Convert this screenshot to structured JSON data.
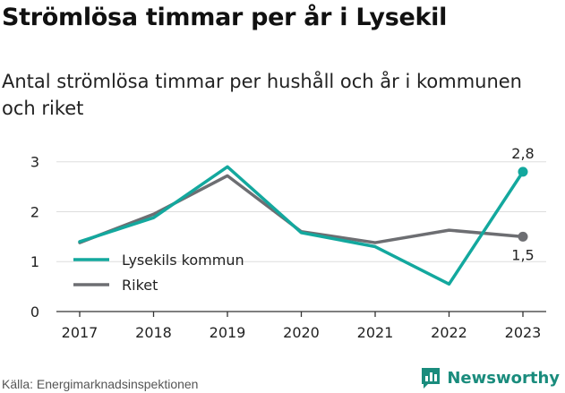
{
  "header": {
    "title": "Strömlösa timmar per år i Lysekil",
    "subtitle": "Antal strömlösa timmar per hushåll och år i kommunen och riket"
  },
  "footer": {
    "source": "Källa: Energimarknadsinspektionen",
    "brand": "Newsworthy",
    "brand_icon": "newsworthy-logo-icon"
  },
  "colors": {
    "lysekil": "#13a89e",
    "riket": "#6d6e72",
    "grid": "#dddddd",
    "axis": "#333333"
  },
  "chart_data": {
    "type": "line",
    "x": [
      "2017",
      "2018",
      "2019",
      "2020",
      "2021",
      "2022",
      "2023"
    ],
    "ylim": [
      0,
      3.3
    ],
    "yticks": [
      "0",
      "1",
      "2",
      "3"
    ],
    "grid": true,
    "legend": "bottom-left",
    "series": [
      {
        "name": "Lysekils kommun",
        "values": [
          1.4,
          1.88,
          2.9,
          1.58,
          1.3,
          0.55,
          2.8
        ],
        "end_label": "2,8"
      },
      {
        "name": "Riket",
        "values": [
          1.38,
          1.95,
          2.72,
          1.6,
          1.38,
          1.63,
          1.5
        ],
        "end_label": "1,5"
      }
    ]
  }
}
